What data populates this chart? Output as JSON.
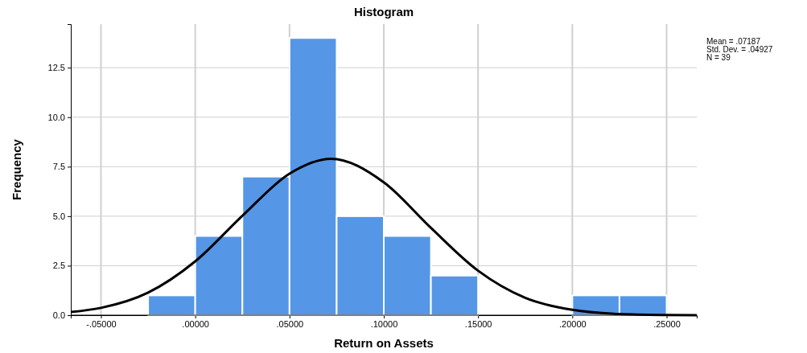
{
  "chart_data": {
    "type": "histogram",
    "title": "Histogram",
    "xlabel": "Return on Assets",
    "ylabel": "Frequency",
    "annotations": [
      "Mean = .07187",
      "Std. Dev. = .04927",
      "N = 39"
    ],
    "xlim": [
      -0.066,
      0.266
    ],
    "xticks": [
      {
        "value": -0.05,
        "label": "-.05000"
      },
      {
        "value": 0,
        "label": ".00000"
      },
      {
        "value": 0.05,
        "label": ".05000"
      },
      {
        "value": 0.1,
        "label": ".10000"
      },
      {
        "value": 0.15,
        "label": ".15000"
      },
      {
        "value": 0.2,
        "label": ".20000"
      },
      {
        "value": 0.25,
        "label": ".25000"
      }
    ],
    "ylim": [
      0,
      14.7
    ],
    "yticks": [
      {
        "value": 0,
        "label": "0.0"
      },
      {
        "value": 2.5,
        "label": "2.5"
      },
      {
        "value": 5,
        "label": "5.0"
      },
      {
        "value": 7.5,
        "label": "7.5"
      },
      {
        "value": 10,
        "label": "10.0"
      },
      {
        "value": 12.5,
        "label": "12.5"
      }
    ],
    "grid": true,
    "series": [
      {
        "color": "#5596e6",
        "bins": [
          -0.025,
          0,
          0.025,
          0.05,
          0.075,
          0.1,
          0.125,
          0.15,
          0.175,
          0.2,
          0.225,
          0.25
        ],
        "values": [
          1,
          4,
          7,
          14,
          5,
          4,
          2,
          0,
          0,
          1,
          1
        ]
      },
      {
        "type": "line",
        "color": "#000000",
        "x": [
          -0.066,
          -0.05,
          -0.025,
          0,
          0.025,
          0.05,
          0.072,
          0.1,
          0.125,
          0.15,
          0.175,
          0.2,
          0.225,
          0.25,
          0.266
        ],
        "values": [
          0.16,
          0.37,
          1.14,
          2.72,
          5.02,
          7.15,
          7.9,
          6.71,
          4.41,
          2.25,
          0.88,
          0.27,
          0.06,
          0.01,
          0
        ]
      }
    ]
  }
}
